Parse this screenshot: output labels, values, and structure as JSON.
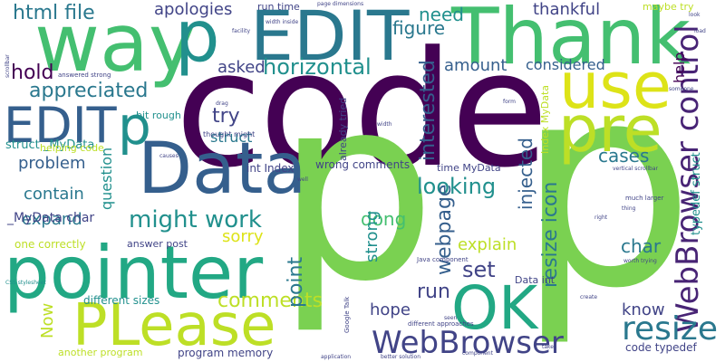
{
  "words": {
    "code": "code",
    "p_big": "p",
    "p_mid": "p",
    "thank": "Thank",
    "way": "way",
    "edit_top": "EDIT",
    "p_top": "p",
    "use": "use",
    "pre": "pre",
    "data": "Data",
    "pointer": "pointer",
    "please": "PLease",
    "ok": "OK",
    "edit_left": "EDIT",
    "p_left": "p",
    "webbrowser_control": "WebBrowser control",
    "webbrowser": "WebBrowser",
    "resize_icon": "resize icon",
    "resize": "resize",
    "html_file": "html file",
    "apologies": "apologies",
    "run_time": "run time",
    "need": "need",
    "thankful": "thankful",
    "maybe_try": "maybe try",
    "figure": "figure",
    "help": "help",
    "hold": "hold",
    "asked": "asked",
    "horizontal": "horizontal",
    "amount": "amount",
    "considered": "considered",
    "appreciated": "appreciated",
    "interested": "interested",
    "try": "try",
    "struct": "struct",
    "problem": "problem",
    "question": "question",
    "int_index": "int Index",
    "wrong_comments": "wrong comments",
    "time_mydata": "time MyData",
    "cases": "cases",
    "typedef_struct": "typedef struct",
    "contain": "contain",
    "looking": "looking",
    "might_work": "might work",
    "expand": "expand",
    "dong": "dong",
    "injected": "injected",
    "webpage": "webpage",
    "mydata_char": "_MyData char",
    "struct_mydata": "struct _MyData",
    "helping_code": "helping code",
    "bit_rough": "bit rough",
    "sorry": "sorry",
    "explain": "explain",
    "char": "char",
    "one_correctly": "one correctly",
    "answer_post": "answer post",
    "set": "set",
    "strong": "strong",
    "comments": "comments",
    "run": "run",
    "point": "point",
    "data_int": "Data int",
    "know": "know",
    "hope": "hope",
    "now": "Now",
    "different_sizes": "different sizes",
    "program_memory": "program memory",
    "another_program": "another program",
    "code_typedef": "code typedef",
    "already_tried": "already tried",
    "index_mydata": "Index MyData",
    "thought_might": "thought might",
    "answered_strong": "answered strong",
    "java_component": "Java component",
    "different_approaches": "different approaches",
    "google_talk": "Google Talk",
    "much_larger": "much larger",
    "vertical_scrollbar": "vertical scrollbar",
    "worth_trying": "worth trying",
    "better_solution": "better solution",
    "css_stylesheet": "CSS stylesheet",
    "application": "application",
    "component": "component",
    "create": "create",
    "someone": "someone",
    "width_inside": "width inside",
    "page_dimensions": "page dimensions",
    "width": "width",
    "form": "form",
    "seen": "seen",
    "take": "take",
    "thing": "thing",
    "right": "right",
    "well": "well",
    "causes": "causes",
    "drag": "drag",
    "look": "look",
    "load": "load",
    "scrollbar": "scrollbar",
    "facility": "facility"
  },
  "palette": {
    "c1": "#440154",
    "c2": "#482475",
    "c3": "#414487",
    "c4": "#355f8d",
    "c5": "#2a788e",
    "c6": "#21908d",
    "c7": "#22a884",
    "c8": "#44bf70",
    "c9": "#7ad151",
    "c10": "#bddf26",
    "c11": "#dde318"
  }
}
